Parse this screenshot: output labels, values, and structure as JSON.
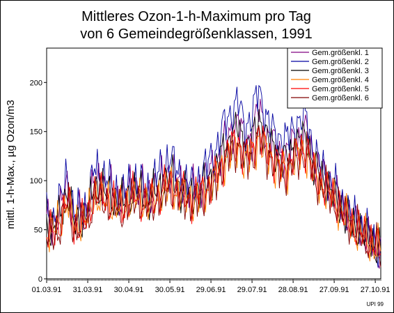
{
  "chart_data": {
    "type": "line",
    "title_line1": "Mittleres Ozon-1-h-Maximum pro Tag",
    "title_line2": "von 6 Gemeindegrößenklassen, 1991",
    "ylabel": "mittl. 1-h-Max., µg Ozon/m3",
    "xlabel": "",
    "credit": "UPI 99",
    "ylim": [
      0,
      235
    ],
    "yticks": [
      0,
      50,
      100,
      150,
      200
    ],
    "x_start": "01.03.91",
    "x_end": "30.10.91",
    "xtick_labels": [
      "01.03.91",
      "31.03.91",
      "30.04.91",
      "30.05.91",
      "29.06.91",
      "29.07.91",
      "28.08.91",
      "27.09.91",
      "27.10.91"
    ],
    "xtick_days": [
      0,
      30,
      60,
      90,
      120,
      150,
      180,
      210,
      240
    ],
    "legend_position": "top-right",
    "series": [
      {
        "name": "Gem.größenkl. 1",
        "color": "#800080"
      },
      {
        "name": "Gem.größenkl. 2",
        "color": "#0000a0"
      },
      {
        "name": "Gem.größenkl. 3",
        "color": "#000000"
      },
      {
        "name": "Gem.größenkl. 4",
        "color": "#ff8000"
      },
      {
        "name": "Gem.größenkl. 5",
        "color": "#ff0000"
      },
      {
        "name": "Gem.größenkl. 6",
        "color": "#800000"
      }
    ],
    "anchor_days": [
      0,
      5,
      10,
      15,
      20,
      25,
      30,
      35,
      40,
      45,
      50,
      55,
      60,
      65,
      70,
      75,
      80,
      85,
      90,
      95,
      100,
      105,
      110,
      115,
      120,
      125,
      130,
      135,
      140,
      145,
      150,
      155,
      160,
      165,
      170,
      175,
      180,
      185,
      190,
      195,
      200,
      205,
      210,
      215,
      220,
      225,
      230,
      235,
      240,
      244
    ],
    "anchor_series_values": [
      [
        60,
        55,
        70,
        95,
        60,
        65,
        70,
        100,
        95,
        90,
        85,
        80,
        90,
        95,
        90,
        85,
        95,
        100,
        110,
        100,
        95,
        90,
        95,
        100,
        110,
        120,
        140,
        150,
        160,
        140,
        145,
        175,
        150,
        140,
        130,
        125,
        140,
        145,
        150,
        120,
        110,
        100,
        90,
        75,
        65,
        55,
        50,
        40,
        30,
        25
      ],
      [
        65,
        60,
        80,
        110,
        65,
        70,
        75,
        115,
        105,
        100,
        90,
        85,
        95,
        100,
        95,
        90,
        105,
        115,
        125,
        110,
        100,
        95,
        100,
        110,
        125,
        135,
        160,
        170,
        180,
        155,
        165,
        195,
        165,
        150,
        145,
        140,
        155,
        160,
        165,
        130,
        115,
        105,
        95,
        80,
        70,
        60,
        55,
        45,
        35,
        28
      ],
      [
        55,
        50,
        65,
        90,
        55,
        60,
        65,
        95,
        90,
        85,
        80,
        75,
        85,
        90,
        85,
        80,
        90,
        95,
        105,
        95,
        90,
        85,
        90,
        95,
        105,
        115,
        135,
        145,
        155,
        135,
        140,
        165,
        145,
        135,
        125,
        120,
        135,
        140,
        145,
        115,
        105,
        95,
        85,
        70,
        60,
        52,
        48,
        40,
        32,
        28
      ],
      [
        50,
        48,
        60,
        80,
        55,
        58,
        62,
        85,
        80,
        78,
        75,
        70,
        78,
        82,
        80,
        75,
        82,
        88,
        95,
        88,
        85,
        80,
        82,
        88,
        95,
        105,
        120,
        130,
        135,
        120,
        125,
        145,
        128,
        120,
        112,
        108,
        120,
        125,
        128,
        105,
        95,
        88,
        80,
        68,
        58,
        50,
        45,
        38,
        32,
        30
      ],
      [
        48,
        45,
        58,
        82,
        52,
        56,
        60,
        88,
        82,
        80,
        76,
        72,
        80,
        84,
        80,
        76,
        84,
        90,
        98,
        90,
        86,
        82,
        85,
        90,
        98,
        108,
        125,
        135,
        140,
        125,
        130,
        150,
        132,
        125,
        115,
        112,
        125,
        130,
        132,
        108,
        98,
        90,
        82,
        70,
        60,
        52,
        46,
        40,
        33,
        30
      ],
      [
        45,
        42,
        55,
        78,
        50,
        54,
        58,
        85,
        80,
        76,
        72,
        68,
        76,
        80,
        78,
        74,
        80,
        86,
        94,
        86,
        82,
        78,
        80,
        86,
        94,
        104,
        120,
        130,
        135,
        120,
        125,
        145,
        128,
        120,
        110,
        108,
        120,
        125,
        128,
        105,
        95,
        88,
        80,
        68,
        58,
        50,
        45,
        38,
        32,
        28
      ]
    ]
  }
}
